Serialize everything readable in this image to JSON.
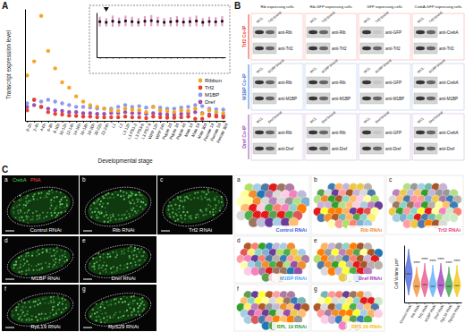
{
  "panel_labels": [
    "A",
    "B",
    "C"
  ],
  "chart_data": [
    {
      "type": "scatter",
      "y_label": "Transcript expression level",
      "x_label": "Developmental stage",
      "categories": [
        "0-2h",
        "2-4h",
        "4-6h",
        "6-8h",
        "8-10h",
        "10-12h",
        "12-14h",
        "14-16h",
        "16-18h",
        "18-20h",
        "20-22h",
        "22-24h",
        "L1",
        "L2",
        "L3 12h",
        "L3 PS1-2",
        "L3 PS3-6",
        "L3 PS7-9",
        "WPP 12h",
        "WPP 24h",
        "Pupae 2d",
        "Pupae 3d",
        "Pupae 4d",
        "Male 1d",
        "Male 5d",
        "Male 30d",
        "Female 1d",
        "Female 5d",
        "Female 30d"
      ],
      "series": [
        {
          "name": "Ribbon",
          "color": "#f5a623",
          "values": [
            130,
            170,
            300,
            200,
            150,
            110,
            95,
            70,
            55,
            45,
            40,
            35,
            30,
            28,
            35,
            32,
            30,
            25,
            40,
            30,
            28,
            25,
            30,
            28,
            35,
            20,
            30,
            25,
            22
          ]
        },
        {
          "name": "Trf2",
          "color": "#e8412c",
          "values": [
            30,
            60,
            40,
            25,
            20,
            18,
            15,
            14,
            12,
            12,
            10,
            10,
            10,
            10,
            12,
            10,
            10,
            8,
            12,
            10,
            9,
            9,
            10,
            12,
            6,
            6,
            14,
            12,
            10
          ]
        },
        {
          "name": "M1BP",
          "color": "#8c9be8",
          "values": [
            50,
            60,
            55,
            60,
            55,
            50,
            45,
            40,
            40,
            38,
            35,
            35,
            35,
            40,
            45,
            40,
            42,
            38,
            40,
            38,
            35,
            35,
            38,
            40,
            45,
            42,
            35,
            33,
            32
          ]
        },
        {
          "name": "Dref",
          "color": "#9b4fb5",
          "values": [
            40,
            45,
            40,
            35,
            30,
            28,
            25,
            25,
            22,
            22,
            20,
            20,
            22,
            22,
            25,
            22,
            22,
            20,
            22,
            20,
            18,
            18,
            20,
            22,
            25,
            22,
            18,
            16,
            15
          ]
        }
      ],
      "ylim": [
        0,
        320
      ],
      "tick_labels": "x",
      "legend": "right",
      "marker": "circle"
    },
    {
      "type": "scatter",
      "categories": [
        null,
        null,
        null,
        null,
        null,
        null,
        null,
        null,
        null,
        null,
        null,
        null,
        null,
        null,
        null,
        null,
        null,
        null,
        null,
        null
      ],
      "values": [
        255,
        250,
        258,
        252,
        260,
        255,
        250,
        258,
        262,
        256,
        250,
        254,
        258,
        252,
        255,
        260,
        250,
        256,
        254,
        258
      ],
      "error": [
        35,
        30,
        40,
        32,
        38,
        35,
        30,
        36,
        40,
        34,
        30,
        33,
        36,
        32,
        35,
        38,
        30,
        34,
        33,
        36
      ],
      "color": "#111111",
      "ylim": [
        0,
        320
      ],
      "tick_labels": false,
      "marker": "circle"
    },
    {
      "type": "violin",
      "y_label": "Cell Volume μm³",
      "categories": [
        "Control RNAi",
        "Rib RNAi",
        "Trf2 RNAi",
        "M1BP RNAi",
        "Dref RNAi",
        "RpL19 RNAi",
        "RpS29 RNAi"
      ],
      "colors": [
        "#3b5bdb",
        "#f08c2e",
        "#e64980",
        "#4dabf7",
        "#9c36b5",
        "#2f9e44",
        "#f2c200"
      ],
      "min": [
        200,
        150,
        150,
        150,
        150,
        150,
        150
      ],
      "median": [
        800,
        450,
        500,
        450,
        480,
        450,
        470
      ],
      "max": [
        1500,
        1000,
        1100,
        1050,
        1100,
        1000,
        1050
      ],
      "ylim": [
        0,
        1600
      ],
      "tick_labels": "x",
      "annotations": [
        {
          "category": 1,
          "text": "****"
        },
        {
          "category": 2,
          "text": "****"
        },
        {
          "category": 3,
          "text": "****"
        },
        {
          "category": 4,
          "text": "****"
        },
        {
          "category": 5,
          "text": "****"
        },
        {
          "category": 6,
          "text": "****"
        }
      ]
    }
  ],
  "blots": {
    "columns": [
      "Rib expressing cells",
      "Rib-GFP expressing cells",
      "GFP expressing cells",
      "CrebA-GFP expressing cells"
    ],
    "rows": [
      {
        "label": "Trf2 Co-IP",
        "color": "#e8412c",
        "lanes": [
          "WCL",
          "Trf2 bound"
        ],
        "antibodies": [
          [
            "anti-Rib",
            "anti-Trf2"
          ],
          [
            "anti-Rib",
            "anti-Trf2"
          ],
          [
            "anti-GFP",
            "anti-Trf2"
          ],
          [
            "anti-CrebA",
            "anti-Trf2"
          ]
        ]
      },
      {
        "label": "M1BP Co-IP",
        "color": "#4a7bd0",
        "lanes": [
          "WCL",
          "M1BP bound"
        ],
        "antibodies": [
          [
            "anti-Rib",
            "anti-M1BP"
          ],
          [
            "anti-Rib",
            "anti-M1BP"
          ],
          [
            "anti-GFP",
            "anti-M1BP"
          ],
          [
            "anti-CrebA",
            "anti-M1BP"
          ]
        ]
      },
      {
        "label": "Dref Co-IP",
        "color": "#9b4fb5",
        "lanes": [
          "WCL",
          "Dref bound"
        ],
        "antibodies": [
          [
            "anti-Rib",
            "anti-Dref"
          ],
          [
            "anti-Rib",
            "anti-Dref"
          ],
          [
            "anti-GFP",
            "anti-Dref"
          ],
          [
            "anti-CrebA",
            "anti-Dref"
          ]
        ]
      }
    ]
  },
  "microscopy": {
    "stain_labels": [
      "CrebA",
      "PNA"
    ],
    "panels": [
      {
        "letter": "a",
        "label": "Control RNAi"
      },
      {
        "letter": "b",
        "label": "Rib RNAi"
      },
      {
        "letter": "c",
        "label": "Trf2 RNAi"
      },
      {
        "letter": "d",
        "label": "M1BP RNAi"
      },
      {
        "letter": "e",
        "label": "Dref RNAi"
      },
      {
        "letter": "f",
        "label": "RpL19 RNAi"
      },
      {
        "letter": "g",
        "label": "RpS29 RNAi"
      }
    ]
  },
  "segmentation": {
    "panels": [
      {
        "letter": "a",
        "label": "Control RNAi",
        "color": "#3b5bdb"
      },
      {
        "letter": "b",
        "label": "Rib RNAi",
        "color": "#f08c2e"
      },
      {
        "letter": "c",
        "label": "Trf2 RNAi",
        "color": "#e64980"
      },
      {
        "letter": "d",
        "label": "M1BP RNAi",
        "color": "#4dabf7"
      },
      {
        "letter": "e",
        "label": "Dref RNAi",
        "color": "#9c36b5"
      },
      {
        "letter": "f",
        "label": "RPL 19 RNAi",
        "color": "#2f9e44"
      },
      {
        "letter": "g",
        "label": "RPS 29 RNAi",
        "color": "#f2c200"
      }
    ]
  }
}
